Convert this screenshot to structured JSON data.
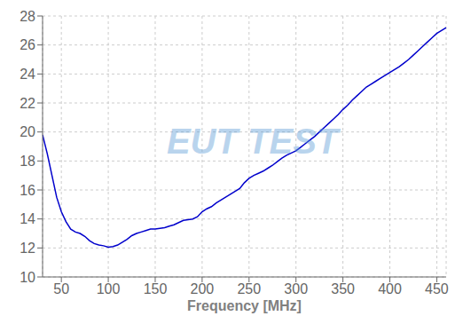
{
  "chart_data": {
    "type": "line",
    "xlabel": "Frequency [MHz]",
    "x": [
      30,
      35,
      40,
      45,
      50,
      55,
      60,
      65,
      70,
      75,
      80,
      85,
      90,
      95,
      100,
      105,
      110,
      115,
      120,
      125,
      130,
      135,
      140,
      145,
      150,
      155,
      160,
      165,
      170,
      175,
      180,
      185,
      190,
      195,
      200,
      205,
      210,
      215,
      220,
      225,
      230,
      235,
      240,
      245,
      250,
      255,
      260,
      265,
      270,
      275,
      280,
      285,
      290,
      295,
      300,
      305,
      310,
      315,
      320,
      325,
      330,
      335,
      340,
      345,
      350,
      355,
      360,
      365,
      370,
      375,
      380,
      385,
      390,
      395,
      400,
      405,
      410,
      415,
      420,
      425,
      430,
      435,
      440,
      445,
      450,
      455,
      460
    ],
    "values": [
      19.8,
      18.5,
      17.0,
      15.5,
      14.5,
      13.8,
      13.3,
      13.1,
      13.0,
      12.8,
      12.5,
      12.3,
      12.2,
      12.15,
      12.05,
      12.1,
      12.2,
      12.4,
      12.6,
      12.85,
      13.0,
      13.1,
      13.2,
      13.3,
      13.3,
      13.35,
      13.4,
      13.5,
      13.6,
      13.75,
      13.9,
      13.95,
      14.0,
      14.15,
      14.5,
      14.7,
      14.85,
      15.1,
      15.3,
      15.5,
      15.7,
      15.9,
      16.1,
      16.5,
      16.8,
      17.0,
      17.15,
      17.3,
      17.5,
      17.7,
      17.95,
      18.2,
      18.4,
      18.55,
      18.7,
      18.95,
      19.2,
      19.45,
      19.7,
      20.0,
      20.3,
      20.6,
      20.9,
      21.2,
      21.55,
      21.85,
      22.2,
      22.5,
      22.8,
      23.1,
      23.3,
      23.5,
      23.7,
      23.9,
      24.1,
      24.3,
      24.5,
      24.75,
      25.0,
      25.3,
      25.6,
      25.9,
      26.2,
      26.5,
      26.8,
      27.0,
      27.2
    ],
    "color": "#0000cc",
    "xlim": [
      30,
      460
    ],
    "ylim": [
      10,
      28
    ],
    "xticks": [
      50,
      100,
      150,
      200,
      250,
      300,
      350,
      400,
      450
    ],
    "yticks": [
      10,
      12,
      14,
      16,
      18,
      20,
      22,
      24,
      26,
      28
    ],
    "grid": true,
    "annotations": [
      {
        "text": "EUT TEST",
        "color": "#5b9bd5"
      }
    ]
  }
}
